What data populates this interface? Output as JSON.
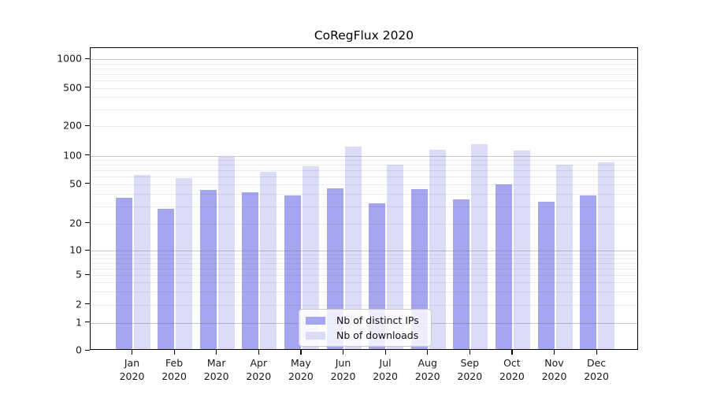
{
  "chart_data": {
    "type": "bar",
    "title": "CoRegFlux 2020",
    "x_months": [
      "Jan",
      "Feb",
      "Mar",
      "Apr",
      "May",
      "Jun",
      "Jul",
      "Aug",
      "Sep",
      "Oct",
      "Nov",
      "Dec"
    ],
    "x_year": "2020",
    "y_ticks": [
      0,
      1,
      2,
      5,
      10,
      20,
      50,
      100,
      200,
      500,
      1000
    ],
    "y_scale": "symlog",
    "ylim": [
      0,
      1300
    ],
    "grid": "horizontal major+minor",
    "legend_position": "lower center",
    "series": [
      {
        "name": "Nb of distinct IPs",
        "color": "#a6a6f0",
        "values": [
          35,
          27,
          42,
          40,
          37,
          44,
          31,
          43,
          34,
          48,
          32,
          37
        ]
      },
      {
        "name": "Nb of downloads",
        "color": "#dcdcf8",
        "values": [
          60,
          56,
          93,
          65,
          74,
          119,
          77,
          111,
          126,
          109,
          77,
          82
        ]
      }
    ]
  }
}
